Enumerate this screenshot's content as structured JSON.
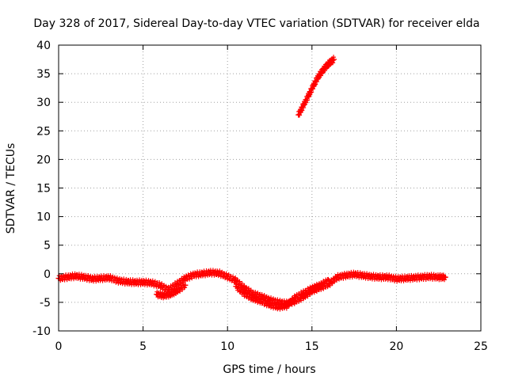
{
  "chart_data": {
    "type": "scatter",
    "title": "Day 328 of 2017, Sidereal Day-to-day VTEC variation (SDTVAR) for receiver elda",
    "xlabel": "GPS time / hours",
    "ylabel": "SDTVAR / TECUs",
    "xlim": [
      0,
      25
    ],
    "ylim": [
      -10,
      40
    ],
    "xticks": [
      0,
      5,
      10,
      15,
      20,
      25
    ],
    "yticks": [
      -10,
      -5,
      0,
      5,
      10,
      15,
      20,
      25,
      30,
      35,
      40
    ],
    "grid": true,
    "legend": "none",
    "series": [
      {
        "name": "SDTVAR",
        "color": "#ff0000",
        "marker": "plus",
        "points": [
          [
            0.0,
            -0.8
          ],
          [
            0.5,
            -0.6
          ],
          [
            1.0,
            -0.4
          ],
          [
            1.5,
            -0.6
          ],
          [
            2.0,
            -0.9
          ],
          [
            2.5,
            -0.8
          ],
          [
            3.0,
            -0.7
          ],
          [
            3.5,
            -1.2
          ],
          [
            4.0,
            -1.4
          ],
          [
            4.5,
            -1.5
          ],
          [
            5.0,
            -1.5
          ],
          [
            5.5,
            -1.6
          ],
          [
            6.0,
            -2.0
          ],
          [
            6.5,
            -2.8
          ],
          [
            7.0,
            -1.8
          ],
          [
            7.5,
            -0.8
          ],
          [
            8.0,
            -0.2
          ],
          [
            8.5,
            0.0
          ],
          [
            9.0,
            0.2
          ],
          [
            9.5,
            0.1
          ],
          [
            10.0,
            -0.5
          ],
          [
            10.5,
            -1.2
          ],
          [
            11.0,
            -2.5
          ],
          [
            11.5,
            -3.5
          ],
          [
            12.0,
            -4.0
          ],
          [
            12.5,
            -4.6
          ],
          [
            13.0,
            -5.0
          ],
          [
            13.5,
            -5.2
          ],
          [
            14.0,
            -4.8
          ],
          [
            14.5,
            -4.0
          ],
          [
            15.0,
            -3.0
          ],
          [
            15.5,
            -2.4
          ],
          [
            16.0,
            -1.8
          ],
          [
            16.5,
            -0.6
          ],
          [
            17.0,
            -0.3
          ],
          [
            17.5,
            -0.1
          ],
          [
            18.0,
            -0.3
          ],
          [
            18.5,
            -0.5
          ],
          [
            19.0,
            -0.6
          ],
          [
            19.5,
            -0.6
          ],
          [
            20.0,
            -0.9
          ],
          [
            20.5,
            -0.8
          ],
          [
            21.0,
            -0.7
          ],
          [
            21.5,
            -0.6
          ],
          [
            22.0,
            -0.5
          ],
          [
            22.5,
            -0.6
          ],
          [
            22.9,
            -0.6
          ],
          [
            5.8,
            -3.6
          ],
          [
            6.2,
            -3.8
          ],
          [
            6.6,
            -3.6
          ],
          [
            7.0,
            -3.0
          ],
          [
            7.5,
            -2.0
          ],
          [
            10.5,
            -2.2
          ],
          [
            11.0,
            -3.5
          ],
          [
            11.5,
            -4.3
          ],
          [
            12.0,
            -4.8
          ],
          [
            12.5,
            -5.4
          ],
          [
            13.0,
            -5.8
          ],
          [
            13.5,
            -5.6
          ],
          [
            14.0,
            -4.2
          ],
          [
            14.5,
            -3.4
          ],
          [
            15.0,
            -2.6
          ],
          [
            15.5,
            -2.0
          ],
          [
            16.0,
            -1.2
          ],
          [
            14.2,
            27.8
          ],
          [
            14.5,
            29.5
          ],
          [
            14.8,
            31.2
          ],
          [
            15.1,
            33.0
          ],
          [
            15.4,
            34.6
          ],
          [
            15.7,
            35.8
          ],
          [
            16.0,
            36.8
          ],
          [
            16.3,
            37.5
          ]
        ]
      }
    ]
  }
}
